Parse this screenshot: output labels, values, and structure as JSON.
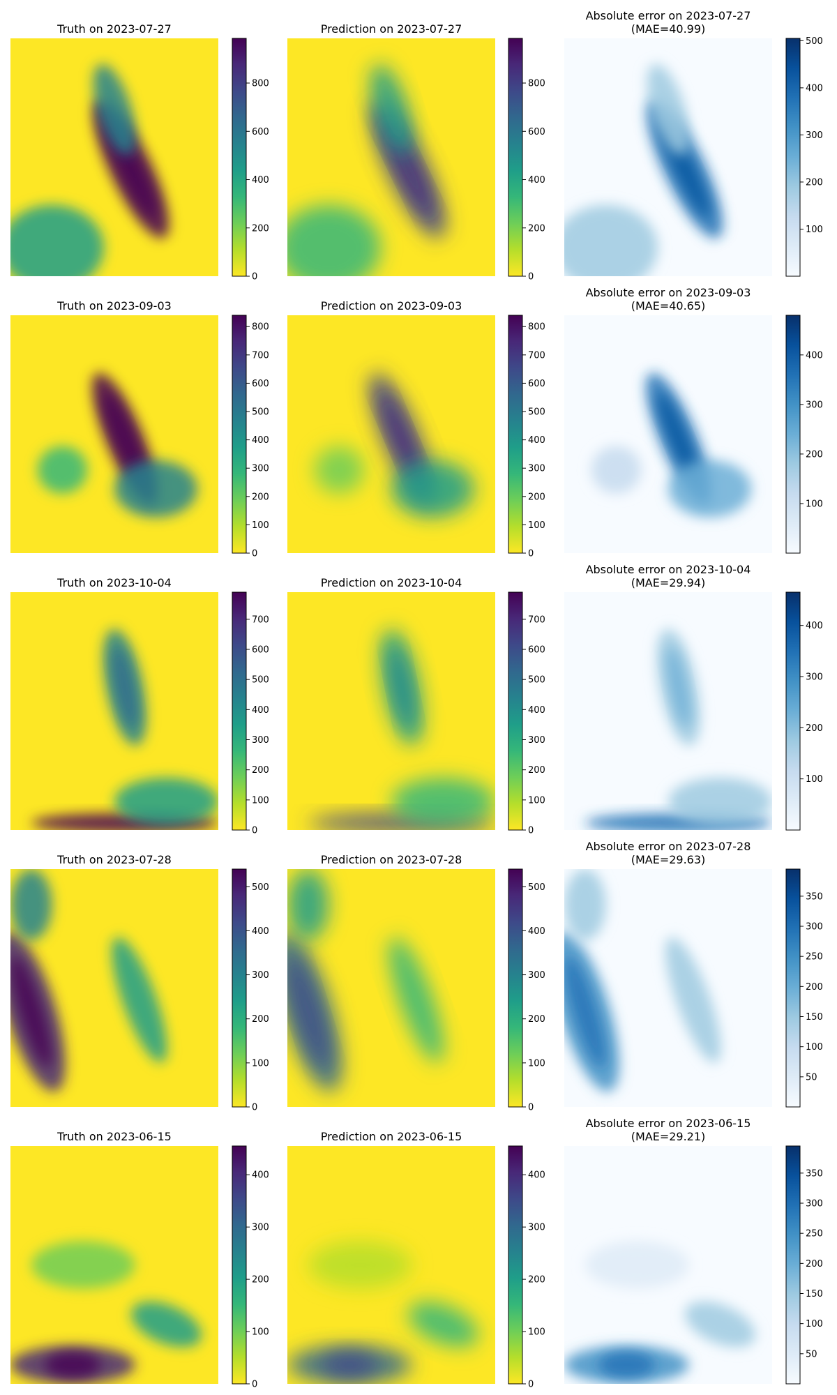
{
  "figure": {
    "colormaps": {
      "viridis_r": [
        "#fde725",
        "#b5de2b",
        "#6ece58",
        "#35b779",
        "#1f9e89",
        "#26828e",
        "#31688e",
        "#3e4989",
        "#482878",
        "#440154"
      ],
      "blues": [
        "#f7fbff",
        "#deebf7",
        "#c6dbef",
        "#9ecae1",
        "#6baed6",
        "#4292c6",
        "#2171b5",
        "#08519c",
        "#08306b"
      ]
    }
  },
  "chart_data": [
    {
      "type": "heatmap",
      "date": "2023-07-27",
      "panels": [
        {
          "kind": "truth",
          "title": [
            "Truth on 2023-07-27"
          ],
          "cmap": "viridis_r",
          "vmin": 0,
          "vmax": 985,
          "ticks": [
            0,
            200,
            400,
            600,
            800
          ]
        },
        {
          "kind": "prediction",
          "title": [
            "Prediction on 2023-07-27"
          ],
          "cmap": "viridis_r",
          "vmin": 0,
          "vmax": 985,
          "ticks": [
            0,
            200,
            400,
            600,
            800
          ]
        },
        {
          "kind": "error",
          "title": [
            "Absolute error on 2023-07-27",
            "(MAE=40.99)"
          ],
          "mae": 40.99,
          "cmap": "blues",
          "vmin": 0,
          "vmax": 505,
          "ticks": [
            100,
            200,
            300,
            400,
            500
          ]
        }
      ]
    },
    {
      "type": "heatmap",
      "date": "2023-09-03",
      "panels": [
        {
          "kind": "truth",
          "title": [
            "Truth on 2023-09-03"
          ],
          "cmap": "viridis_r",
          "vmin": 0,
          "vmax": 840,
          "ticks": [
            0,
            100,
            200,
            300,
            400,
            500,
            600,
            700,
            800
          ]
        },
        {
          "kind": "prediction",
          "title": [
            "Prediction on 2023-09-03"
          ],
          "cmap": "viridis_r",
          "vmin": 0,
          "vmax": 840,
          "ticks": [
            0,
            100,
            200,
            300,
            400,
            500,
            600,
            700,
            800
          ]
        },
        {
          "kind": "error",
          "title": [
            "Absolute error on 2023-09-03",
            "(MAE=40.65)"
          ],
          "mae": 40.65,
          "cmap": "blues",
          "vmin": 0,
          "vmax": 480,
          "ticks": [
            100,
            200,
            300,
            400
          ]
        }
      ]
    },
    {
      "type": "heatmap",
      "date": "2023-10-04",
      "panels": [
        {
          "kind": "truth",
          "title": [
            "Truth on 2023-10-04"
          ],
          "cmap": "viridis_r",
          "vmin": 0,
          "vmax": 790,
          "ticks": [
            0,
            100,
            200,
            300,
            400,
            500,
            600,
            700
          ]
        },
        {
          "kind": "prediction",
          "title": [
            "Prediction on 2023-10-04"
          ],
          "cmap": "viridis_r",
          "vmin": 0,
          "vmax": 790,
          "ticks": [
            0,
            100,
            200,
            300,
            400,
            500,
            600,
            700
          ]
        },
        {
          "kind": "error",
          "title": [
            "Absolute error on 2023-10-04",
            "(MAE=29.94)"
          ],
          "mae": 29.94,
          "cmap": "blues",
          "vmin": 0,
          "vmax": 465,
          "ticks": [
            100,
            200,
            300,
            400
          ]
        }
      ]
    },
    {
      "type": "heatmap",
      "date": "2023-07-28",
      "panels": [
        {
          "kind": "truth",
          "title": [
            "Truth on 2023-07-28"
          ],
          "cmap": "viridis_r",
          "vmin": 0,
          "vmax": 540,
          "ticks": [
            0,
            100,
            200,
            300,
            400,
            500
          ]
        },
        {
          "kind": "prediction",
          "title": [
            "Prediction on 2023-07-28"
          ],
          "cmap": "viridis_r",
          "vmin": 0,
          "vmax": 540,
          "ticks": [
            0,
            100,
            200,
            300,
            400,
            500
          ]
        },
        {
          "kind": "error",
          "title": [
            "Absolute error on 2023-07-28",
            "(MAE=29.63)"
          ],
          "mae": 29.63,
          "cmap": "blues",
          "vmin": 0,
          "vmax": 395,
          "ticks": [
            50,
            100,
            150,
            200,
            250,
            300,
            350
          ]
        }
      ]
    },
    {
      "type": "heatmap",
      "date": "2023-06-15",
      "panels": [
        {
          "kind": "truth",
          "title": [
            "Truth on 2023-06-15"
          ],
          "cmap": "viridis_r",
          "vmin": 0,
          "vmax": 455,
          "ticks": [
            0,
            100,
            200,
            300,
            400
          ]
        },
        {
          "kind": "prediction",
          "title": [
            "Prediction on 2023-06-15"
          ],
          "cmap": "viridis_r",
          "vmin": 0,
          "vmax": 455,
          "ticks": [
            0,
            100,
            200,
            300,
            400
          ]
        },
        {
          "kind": "error",
          "title": [
            "Absolute error on 2023-06-15",
            "(MAE=29.21)"
          ],
          "mae": 29.21,
          "cmap": "blues",
          "vmin": 0,
          "vmax": 395,
          "ticks": [
            50,
            100,
            150,
            200,
            250,
            300,
            350
          ]
        }
      ]
    }
  ]
}
